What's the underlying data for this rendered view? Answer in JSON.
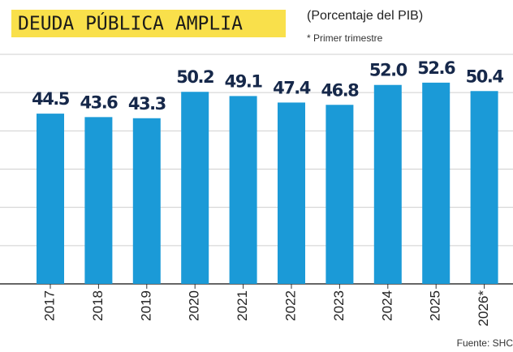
{
  "chart_data": {
    "type": "bar",
    "title": "DEUDA PÚBLICA AMPLIA",
    "subtitle": "(Porcentaje del PIB)",
    "note": "* Primer trimestre",
    "source": "Fuente: SHC",
    "categories": [
      "2017",
      "2018",
      "2019",
      "2020",
      "2021",
      "2022",
      "2023",
      "2024",
      "2025",
      "2026*"
    ],
    "values": [
      44.5,
      43.6,
      43.3,
      50.2,
      49.1,
      47.4,
      46.8,
      52.0,
      52.6,
      50.4
    ],
    "value_labels": [
      "44.5",
      "43.6",
      "43.3",
      "50.2",
      "49.1",
      "47.4",
      "46.8",
      "52.0",
      "52.6",
      "50.4"
    ],
    "color": "#1b9ad7",
    "ylim": [
      0,
      60
    ],
    "yticks": [
      0,
      10,
      20,
      30,
      40,
      50,
      60
    ],
    "grid": true
  }
}
